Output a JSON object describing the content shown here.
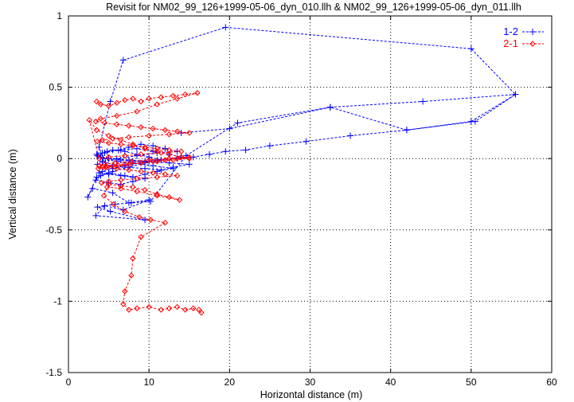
{
  "chart_data": {
    "type": "line",
    "title": "Revisit for NM02_99_126+1999-05-06_dyn_010.llh & NM02_99_126+1999-05-06_dyn_011.llh",
    "xlabel": "Horizontal distance (m)",
    "ylabel": "Vertical distance (m)",
    "xlim": [
      0,
      60
    ],
    "ylim": [
      -1.5,
      1
    ],
    "x_ticks": [
      "0",
      "10",
      "20",
      "30",
      "40",
      "50",
      "60"
    ],
    "y_ticks": [
      "1",
      "0.5",
      "0",
      "-0.5",
      "-1",
      "-1.5"
    ],
    "grid": true,
    "legend_position": "top-right",
    "series": [
      {
        "name": "1-2",
        "color": "#0000ff",
        "marker": "plus",
        "line": "dashed",
        "x": [
          4.6,
          3.8,
          5.2,
          6.8,
          19.5,
          50.0,
          55.5,
          50.5,
          42.0,
          35.0,
          29.5,
          25.0,
          22.0,
          19.5,
          17.5,
          15.5,
          13.5,
          11.5,
          9.5,
          8.0,
          6.5,
          5.0,
          4.0,
          3.5,
          4.8,
          6.2,
          7.5,
          9.0,
          10.5,
          12.0,
          13.5,
          11.0,
          8.5,
          6.0,
          4.2,
          3.6,
          5.5,
          7.0,
          9.5,
          11.5,
          13.0,
          15.0,
          12.5,
          10.0,
          7.5,
          5.0,
          3.7,
          4.5,
          6.5,
          8.5,
          10.5,
          12.5,
          14.0,
          11.0,
          9.0,
          7.0,
          5.5,
          4.2,
          3.8,
          5.0,
          6.5,
          8.0,
          9.5,
          11.0,
          13.0,
          10.5,
          8.0,
          6.0,
          4.3,
          3.6,
          4.2,
          5.5,
          7.0,
          8.5,
          10.0,
          11.5,
          9.5,
          7.5,
          5.5,
          4.0,
          3.4,
          5.0,
          6.5,
          8.0,
          9.5,
          7.0,
          5.0,
          3.5,
          2.4,
          3.0,
          5.5,
          7.5,
          10.0,
          6.8,
          4.5,
          3.4,
          9.5,
          5.2,
          3.6,
          5.8,
          7.8,
          10.2,
          14.6,
          21.0,
          32.5,
          44.0,
          55.5,
          50.0,
          42.0,
          32.5,
          20.0,
          14.0
        ],
        "y": [
          -0.03,
          0.08,
          0.4,
          0.69,
          0.92,
          0.77,
          0.45,
          0.26,
          0.2,
          0.16,
          0.12,
          0.09,
          0.06,
          0.05,
          0.03,
          0.01,
          0.0,
          -0.01,
          -0.02,
          -0.02,
          -0.01,
          0.0,
          0.01,
          0.03,
          0.05,
          0.06,
          0.08,
          0.1,
          0.09,
          0.07,
          0.05,
          0.04,
          0.02,
          0.0,
          -0.02,
          -0.04,
          -0.05,
          -0.06,
          -0.07,
          -0.08,
          -0.06,
          -0.04,
          -0.03,
          -0.02,
          -0.01,
          0.0,
          0.02,
          0.04,
          0.06,
          0.07,
          0.05,
          0.03,
          0.01,
          -0.01,
          -0.03,
          -0.05,
          -0.07,
          -0.09,
          -0.1,
          -0.11,
          -0.12,
          -0.13,
          -0.11,
          -0.09,
          -0.07,
          -0.05,
          -0.03,
          -0.02,
          0.0,
          0.02,
          0.04,
          0.06,
          0.05,
          0.03,
          0.01,
          -0.01,
          -0.03,
          -0.06,
          -0.09,
          -0.12,
          -0.15,
          -0.17,
          -0.18,
          -0.16,
          -0.14,
          -0.12,
          -0.1,
          -0.13,
          -0.27,
          -0.21,
          -0.24,
          -0.31,
          -0.29,
          -0.36,
          -0.33,
          -0.4,
          -0.43,
          -0.37,
          -0.34,
          -0.32,
          -0.31,
          -0.3,
          0.02,
          0.25,
          0.36,
          0.4,
          0.45,
          0.26,
          0.2,
          0.36,
          0.21,
          0.18
        ]
      },
      {
        "name": "2-1",
        "color": "#ff0000",
        "marker": "diamond",
        "line": "dashed",
        "x": [
          3.5,
          4.0,
          5.0,
          6.0,
          7.0,
          8.0,
          9.0,
          10.0,
          11.5,
          13.0,
          14.5,
          16.0,
          13.5,
          11.0,
          8.5,
          6.0,
          4.0,
          3.4,
          4.5,
          6.0,
          7.5,
          9.0,
          10.5,
          12.0,
          13.5,
          15.0,
          12.5,
          10.0,
          7.5,
          5.5,
          4.2,
          3.6,
          5.0,
          6.5,
          8.0,
          9.5,
          11.0,
          12.5,
          14.0,
          11.5,
          9.0,
          7.0,
          5.0,
          3.8,
          2.6,
          3.5,
          5.0,
          6.5,
          8.0,
          9.5,
          11.0,
          12.5,
          14.0,
          15.0,
          13.0,
          11.0,
          9.0,
          7.0,
          5.5,
          4.3,
          3.7,
          4.8,
          6.2,
          7.6,
          9.0,
          10.5,
          12.0,
          13.5,
          15.0,
          12.5,
          10.0,
          7.8,
          5.8,
          4.5,
          3.8,
          4.6,
          6.0,
          7.5,
          9.0,
          10.5,
          12.0,
          13.5,
          11.0,
          8.5,
          6.5,
          5.0,
          4.1,
          5.0,
          6.5,
          8.0,
          9.5,
          11.0,
          12.5,
          13.8,
          11.0,
          8.5,
          6.5,
          4.8,
          4.4,
          5.6,
          7.0,
          8.8,
          10.2,
          12.0,
          9.0,
          8.0,
          7.8,
          7.0,
          6.8,
          7.5,
          8.5,
          10.0,
          11.5,
          12.5,
          13.5,
          14.5,
          15.5,
          16.5,
          16.2
        ],
        "y": [
          0.4,
          0.38,
          0.37,
          0.39,
          0.41,
          0.42,
          0.4,
          0.42,
          0.43,
          0.44,
          0.45,
          0.46,
          0.42,
          0.38,
          0.33,
          0.3,
          0.28,
          0.26,
          0.25,
          0.24,
          0.23,
          0.22,
          0.21,
          0.2,
          0.19,
          0.18,
          0.17,
          0.16,
          0.15,
          0.14,
          0.13,
          0.12,
          0.11,
          0.1,
          0.09,
          0.08,
          0.07,
          0.06,
          0.05,
          0.04,
          0.03,
          0.02,
          0.01,
          0.0,
          0.27,
          0.2,
          0.16,
          0.13,
          0.1,
          0.07,
          0.05,
          0.03,
          0.01,
          0.0,
          -0.01,
          -0.02,
          -0.03,
          -0.04,
          -0.05,
          -0.06,
          -0.07,
          -0.06,
          -0.05,
          -0.04,
          -0.03,
          -0.02,
          -0.01,
          0.0,
          0.01,
          0.0,
          -0.01,
          -0.02,
          -0.03,
          -0.04,
          -0.05,
          -0.06,
          -0.07,
          -0.08,
          -0.09,
          -0.1,
          -0.11,
          -0.12,
          -0.13,
          -0.14,
          -0.15,
          -0.16,
          -0.17,
          -0.18,
          -0.19,
          -0.2,
          -0.22,
          -0.25,
          -0.27,
          -0.29,
          -0.26,
          -0.23,
          -0.21,
          -0.2,
          -0.26,
          -0.32,
          -0.37,
          -0.41,
          -0.43,
          -0.45,
          -0.55,
          -0.7,
          -0.82,
          -0.93,
          -1.02,
          -1.06,
          -1.05,
          -1.04,
          -1.06,
          -1.05,
          -1.04,
          -1.06,
          -1.05,
          -1.08,
          -1.06
        ]
      }
    ]
  }
}
